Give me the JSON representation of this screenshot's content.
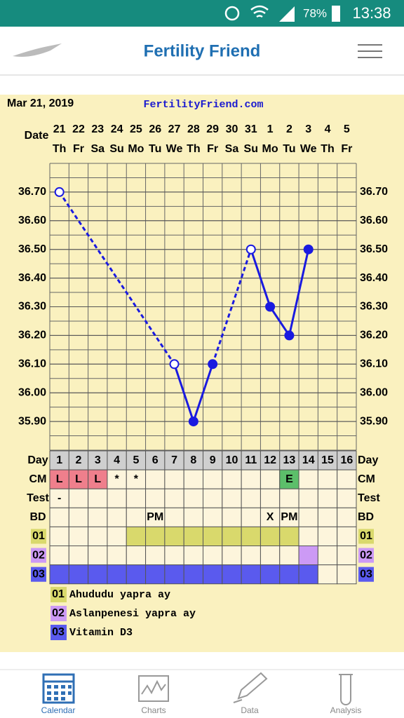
{
  "status_bar": {
    "battery": "78%",
    "time": "13:38"
  },
  "app_bar": {
    "title": "Fertility Friend"
  },
  "chart_header": {
    "date": "Mar 21, 2019",
    "site": "FertilityFriend.com",
    "date_label": "Date"
  },
  "chart_data": {
    "type": "line",
    "categories": [
      "21",
      "22",
      "23",
      "24",
      "25",
      "26",
      "27",
      "28",
      "29",
      "30",
      "31",
      "1",
      "2",
      "3",
      "4",
      "5"
    ],
    "weekdays": [
      "Th",
      "Fr",
      "Sa",
      "Su",
      "Mo",
      "Tu",
      "We",
      "Th",
      "Fr",
      "Sa",
      "Su",
      "Mo",
      "Tu",
      "We",
      "Th",
      "Fr"
    ],
    "series": [
      {
        "color": "#1a1ae0",
        "values": [
          36.7,
          null,
          null,
          null,
          null,
          null,
          36.1,
          35.9,
          36.1,
          null,
          36.5,
          36.3,
          36.2,
          36.5,
          null,
          null
        ],
        "hollow": [
          true,
          false,
          false,
          false,
          false,
          false,
          true,
          false,
          false,
          false,
          true,
          false,
          false,
          false,
          false,
          false
        ]
      }
    ],
    "ylim": [
      35.8,
      36.8
    ],
    "yticks": [
      {
        "value": 35.9,
        "label": "35.90"
      },
      {
        "value": 36.0,
        "label": "36.00"
      },
      {
        "value": 36.1,
        "label": "36.10"
      },
      {
        "value": 36.2,
        "label": "36.20"
      },
      {
        "value": 36.3,
        "label": "36.30"
      },
      {
        "value": 36.4,
        "label": "36.40"
      },
      {
        "value": 36.5,
        "label": "36.50"
      },
      {
        "value": 36.6,
        "label": "36.60"
      },
      {
        "value": 36.7,
        "label": "36.70"
      }
    ],
    "grid": true
  },
  "table": {
    "row_labels": [
      "Day",
      "CM",
      "Test",
      "BD"
    ],
    "days": [
      "1",
      "2",
      "3",
      "4",
      "5",
      "6",
      "7",
      "8",
      "9",
      "10",
      "11",
      "12",
      "13",
      "14",
      "15",
      "16"
    ],
    "cm": [
      "L",
      "L",
      "L",
      "*",
      "*",
      null,
      null,
      null,
      null,
      null,
      null,
      null,
      "E",
      null,
      null,
      null
    ],
    "cm_colors": {
      "L": "#ef7f8c",
      "E": "#5cbf6a"
    },
    "test": [
      "-",
      null,
      null,
      null,
      null,
      null,
      null,
      null,
      null,
      null,
      null,
      null,
      null,
      null,
      null,
      null
    ],
    "bd": [
      null,
      null,
      null,
      null,
      null,
      "PM",
      null,
      null,
      null,
      null,
      null,
      "X",
      "PM",
      null,
      null,
      null
    ],
    "supplements": [
      {
        "code": "01",
        "name": "Ahududu yapra ay",
        "color": "#d9d96c",
        "marked": [
          false,
          false,
          false,
          false,
          true,
          true,
          true,
          true,
          true,
          true,
          true,
          true,
          true,
          false,
          false,
          false
        ]
      },
      {
        "code": "02",
        "name": "Aslanpenesi yapra ay",
        "color": "#cc9af5",
        "marked": [
          false,
          false,
          false,
          false,
          false,
          false,
          false,
          false,
          false,
          false,
          false,
          false,
          false,
          true,
          false,
          false
        ]
      },
      {
        "code": "03",
        "name": "Vitamin D3",
        "color": "#5a5aee",
        "marked": [
          true,
          true,
          true,
          true,
          true,
          true,
          true,
          true,
          true,
          true,
          true,
          true,
          true,
          true,
          false,
          false
        ]
      }
    ]
  },
  "nav": [
    "Calendar",
    "Charts",
    "Data",
    "Analysis"
  ]
}
